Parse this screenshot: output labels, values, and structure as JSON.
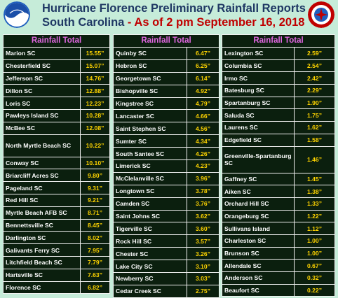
{
  "header": {
    "title_line1": "Hurricane Florence Preliminary Rainfall Reports",
    "title_location": "South Carolina",
    "title_separator": " - ",
    "title_date": "As of 2 pm September 16, 2018",
    "logo_left_text": "NOAA",
    "logo_right_text": "NATIONAL WEATHER SERVICE",
    "colors": {
      "title_blue": "#1f3864",
      "title_red": "#c00000",
      "header_magenta": "#e066e0",
      "value_yellow": "#ffd400",
      "table_bg": "#0b1f0e",
      "page_bg": "#c6ecd9"
    }
  },
  "columns": [
    {
      "heading": "Rainfall Total",
      "rows": [
        {
          "name": "Marion SC",
          "value": "15.55”"
        },
        {
          "name": "Chesterfield SC",
          "value": "15.07”"
        },
        {
          "name": "Jefferson SC",
          "value": "14.76”"
        },
        {
          "name": "Dillon SC",
          "value": "12.88”"
        },
        {
          "name": "Loris SC",
          "value": "12.23”"
        },
        {
          "name": "Pawleys Island SC",
          "value": "10.28”"
        },
        {
          "name": "McBee SC",
          "value": "12.08”"
        },
        {
          "name": "North Myrtle Beach SC",
          "value": "10.22”"
        },
        {
          "name": "Conway SC",
          "value": "10.10”"
        },
        {
          "name": "Briarcliff Acres SC",
          "value": "9.80”"
        },
        {
          "name": "Pageland SC",
          "value": "9.31”"
        },
        {
          "name": "Red Hill SC",
          "value": "9.21”"
        },
        {
          "name": "Myrtle Beach AFB SC",
          "value": "8.71”"
        },
        {
          "name": "Bennettsville SC",
          "value": "8.45”"
        },
        {
          "name": "Darlington SC",
          "value": "8.02”"
        },
        {
          "name": "Galivants Ferry SC",
          "value": "7.95”"
        },
        {
          "name": "Litchfield Beach SC",
          "value": "7.79”"
        },
        {
          "name": "Hartsville SC",
          "value": "7.63”"
        },
        {
          "name": "Florence SC",
          "value": "6.82”"
        }
      ]
    },
    {
      "heading": "Rainfall Total",
      "rows": [
        {
          "name": "Quinby SC",
          "value": "6.47”"
        },
        {
          "name": "Hebron SC",
          "value": "6.25”"
        },
        {
          "name": "Georgetown SC",
          "value": "6.14”"
        },
        {
          "name": "Bishopville SC",
          "value": "4.92”"
        },
        {
          "name": "Kingstree SC",
          "value": "4.79”"
        },
        {
          "name": "Lancaster SC",
          "value": "4.66”"
        },
        {
          "name": "Saint Stephen SC",
          "value": "4.56”"
        },
        {
          "name": "Sumter SC",
          "value": "4.34”"
        },
        {
          "name": "South Santee SC",
          "value": "4.26”"
        },
        {
          "name": "Limerick SC",
          "value": "4.23”"
        },
        {
          "name": "McClelanville SC",
          "value": "3.96”"
        },
        {
          "name": "Longtown SC",
          "value": "3.78”"
        },
        {
          "name": "Camden SC",
          "value": "3.76”"
        },
        {
          "name": "Saint Johns SC",
          "value": "3.62”"
        },
        {
          "name": "Tigerville SC",
          "value": "3.60”"
        },
        {
          "name": "Rock Hill SC",
          "value": "3.57”"
        },
        {
          "name": "Chester SC",
          "value": "3.26”"
        },
        {
          "name": "Lake City SC",
          "value": "3.10”"
        },
        {
          "name": "Newberry SC",
          "value": "3.03”"
        },
        {
          "name": "Cedar Creek SC",
          "value": "2.75”"
        }
      ]
    },
    {
      "heading": "Rainfall Total",
      "rows": [
        {
          "name": "Lexington SC",
          "value": "2.59”"
        },
        {
          "name": "Columbia SC",
          "value": "2.54”"
        },
        {
          "name": "Irmo SC",
          "value": "2.42”"
        },
        {
          "name": "Batesburg SC",
          "value": "2.29”"
        },
        {
          "name": "Spartanburg SC",
          "value": "1.90”"
        },
        {
          "name": "Saluda SC",
          "value": "1.75”"
        },
        {
          "name": "Laurens SC",
          "value": "1.62”"
        },
        {
          "name": "Edgefield SC",
          "value": "1.58”"
        },
        {
          "name": "Greenville-Spartanburg SC",
          "value": "1.46”"
        },
        {
          "name": "Gaffney SC",
          "value": "1.45”"
        },
        {
          "name": "Aiken SC",
          "value": "1.38”"
        },
        {
          "name": "Orchard Hill SC",
          "value": "1.33”"
        },
        {
          "name": "Orangeburg SC",
          "value": "1.22”"
        },
        {
          "name": "Sullivans Island",
          "value": "1.12”"
        },
        {
          "name": "Charleston SC",
          "value": "1.00”"
        },
        {
          "name": "Brunson SC",
          "value": "1.00”"
        },
        {
          "name": "Allendale SC",
          "value": "0.67”"
        },
        {
          "name": "Anderson SC",
          "value": "0.32”"
        },
        {
          "name": "Beaufort SC",
          "value": "0.22”"
        }
      ]
    }
  ]
}
